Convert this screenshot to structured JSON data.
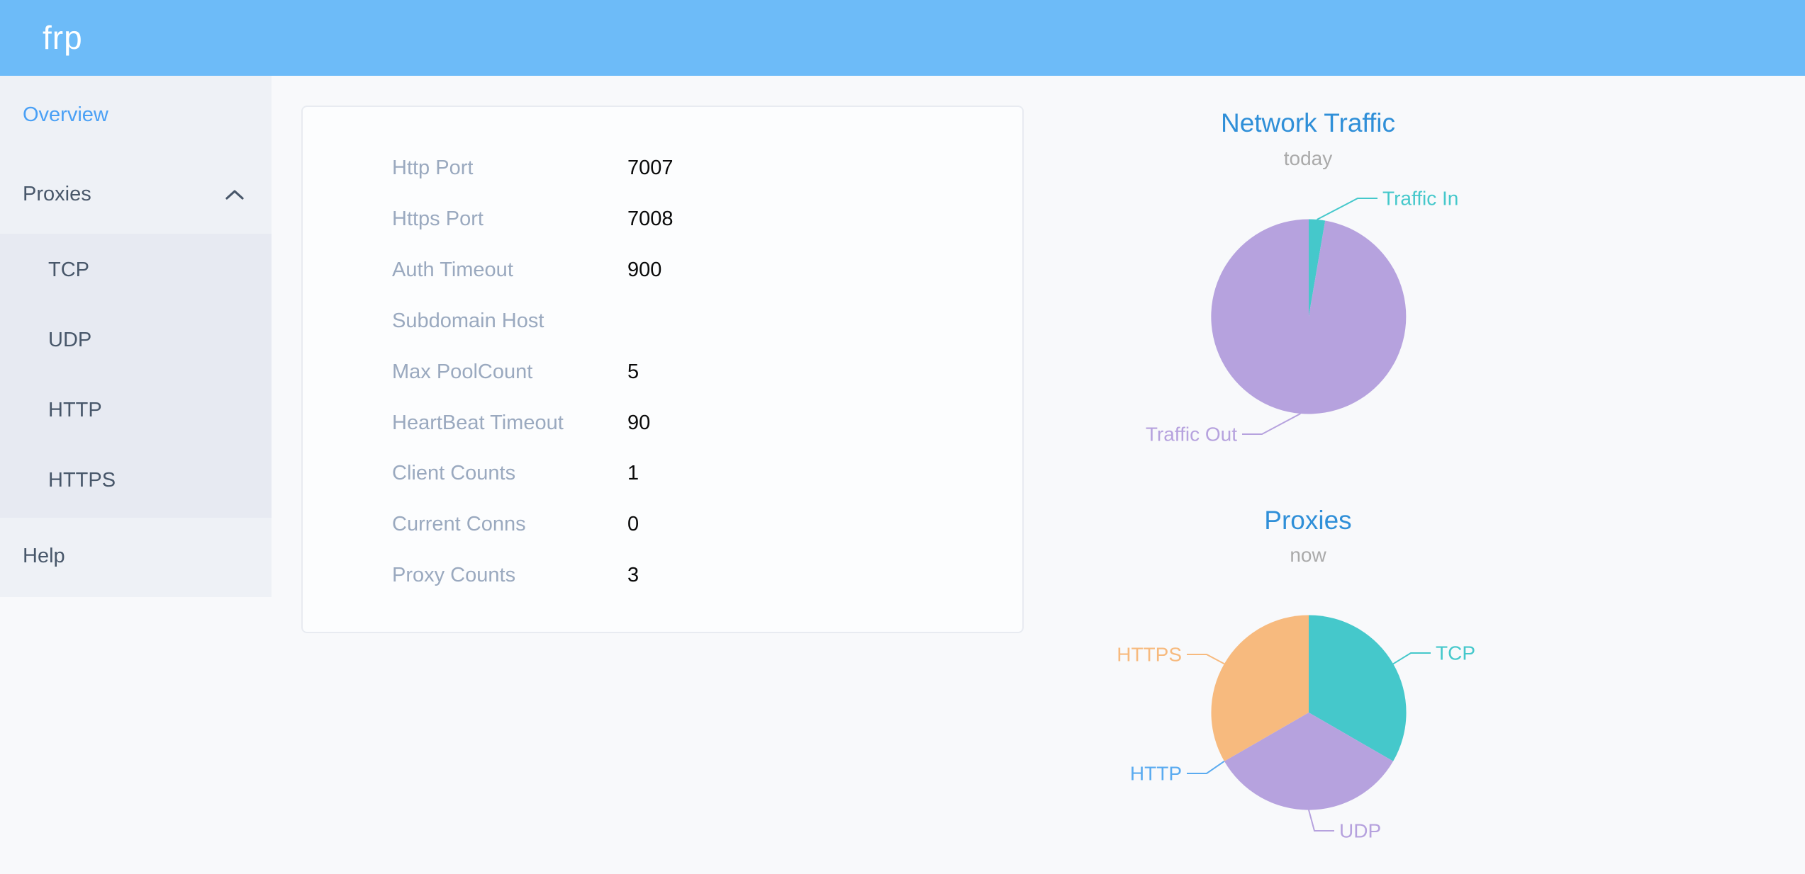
{
  "header": {
    "logo": "frp"
  },
  "sidebar": {
    "overview": "Overview",
    "proxies": "Proxies",
    "submenu": [
      "TCP",
      "UDP",
      "HTTP",
      "HTTPS"
    ],
    "help": "Help"
  },
  "overview_card": {
    "fields": [
      {
        "label": "Http Port",
        "value": "7007"
      },
      {
        "label": "Https Port",
        "value": "7008"
      },
      {
        "label": "Auth Timeout",
        "value": "900"
      },
      {
        "label": "Subdomain Host",
        "value": ""
      },
      {
        "label": "Max PoolCount",
        "value": "5"
      },
      {
        "label": "HeartBeat Timeout",
        "value": "90"
      },
      {
        "label": "Client Counts",
        "value": "1"
      },
      {
        "label": "Current Conns",
        "value": "0"
      },
      {
        "label": "Proxy Counts",
        "value": "3"
      }
    ]
  },
  "chart_data": [
    {
      "type": "pie",
      "title": "Network Traffic",
      "subtitle": "today",
      "labels": [
        "Traffic In",
        "Traffic Out"
      ],
      "values": [
        2.7,
        97.3
      ],
      "values_note": "percent of circle, estimated from slice angles",
      "colors": [
        "#45c8cb",
        "#b6a2de"
      ],
      "legend_position": "outside-labels-with-leader-lines"
    },
    {
      "type": "pie",
      "title": "Proxies",
      "subtitle": "now",
      "labels": [
        "TCP",
        "UDP",
        "HTTP",
        "HTTPS"
      ],
      "values": [
        1,
        1,
        0,
        1
      ],
      "values_note": "proxy counts by type; HTTP slice has zero width",
      "colors": [
        "#45c8cb",
        "#b6a2de",
        "#5aabf0",
        "#f7ba7e"
      ],
      "legend_position": "outside-labels-with-leader-lines"
    }
  ],
  "colors": {
    "header_bg": "#6dbbf8",
    "sidebar_bg": "#eef1f6",
    "submenu_bg": "#e7eaf2",
    "menu_text": "#48576a",
    "active_menu_text": "#4aa0f5",
    "page_bg": "#f8f9fb",
    "card_bg": "#fcfdfe",
    "card_border": "#e8ebf1",
    "card_label": "#9aa9bf",
    "card_value": "#0a0a0a",
    "chart_title": "#2f8fd8",
    "chart_subtitle": "#aaaaaa"
  }
}
